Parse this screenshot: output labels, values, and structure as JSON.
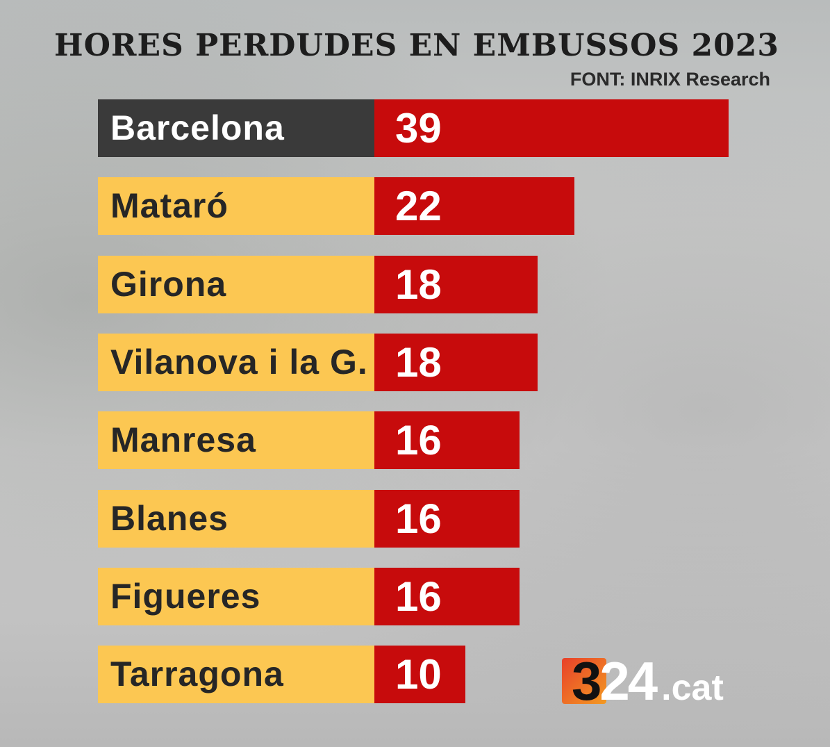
{
  "chart_data": {
    "type": "bar",
    "orientation": "horizontal",
    "title": "HORES PERDUDES EN EMBUSSOS 2023",
    "source": "FONT: INRIX Research",
    "categories": [
      "Barcelona",
      "Mataró",
      "Girona",
      "Vilanova i la G.",
      "Manresa",
      "Blanes",
      "Figueres",
      "Tarragona"
    ],
    "values": [
      39,
      22,
      18,
      18,
      16,
      16,
      16,
      10
    ],
    "xlim": [
      0,
      39
    ],
    "colors": {
      "bar": "#c70b0c",
      "label": "#fcc752",
      "highlight_label": "#3a3a3a"
    }
  },
  "logo": {
    "digit": "3",
    "rest": "24",
    "suffix": ".cat"
  }
}
